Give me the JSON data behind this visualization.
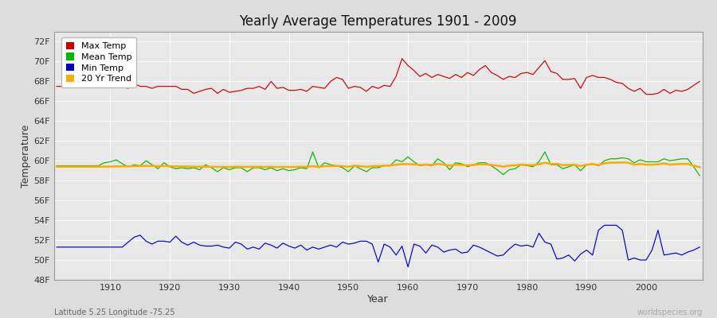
{
  "title": "Yearly Average Temperatures 1901 - 2009",
  "xlabel": "Year",
  "ylabel": "Temperature",
  "subtitle_lat": "Latitude 5.25 Longitude -75.25",
  "watermark": "worldspecies.org",
  "ylim": [
    48,
    73
  ],
  "yticks": [
    48,
    50,
    52,
    54,
    56,
    58,
    60,
    62,
    64,
    66,
    68,
    70,
    72
  ],
  "ytick_labels": [
    "48F",
    "50F",
    "52F",
    "54F",
    "56F",
    "58F",
    "60F",
    "62F",
    "64F",
    "66F",
    "68F",
    "70F",
    "72F"
  ],
  "year_start": 1901,
  "year_end": 2009,
  "colors": {
    "max_temp": "#cc0000",
    "mean_temp": "#00bb00",
    "min_temp": "#0000cc",
    "trend": "#ffaa00",
    "fig_bg": "#dddddd",
    "plot_bg": "#e8e8e8",
    "grid": "#ffffff"
  },
  "max_temp": [
    67.5,
    67.5,
    67.5,
    67.5,
    67.5,
    67.5,
    67.5,
    67.5,
    67.5,
    67.5,
    67.5,
    67.5,
    67.3,
    67.8,
    67.5,
    67.5,
    67.3,
    67.5,
    67.5,
    67.5,
    67.5,
    67.2,
    67.2,
    66.8,
    67.0,
    67.2,
    67.3,
    66.8,
    67.2,
    66.9,
    67.0,
    67.1,
    67.3,
    67.3,
    67.5,
    67.2,
    68.0,
    67.3,
    67.4,
    67.1,
    67.1,
    67.2,
    67.0,
    67.5,
    67.4,
    67.3,
    68.0,
    68.4,
    68.2,
    67.3,
    67.5,
    67.4,
    67.0,
    67.5,
    67.3,
    67.6,
    67.5,
    68.5,
    70.3,
    69.6,
    69.1,
    68.5,
    68.8,
    68.4,
    68.7,
    68.5,
    68.3,
    68.7,
    68.4,
    68.9,
    68.6,
    69.2,
    69.6,
    68.9,
    68.6,
    68.2,
    68.5,
    68.4,
    68.8,
    68.9,
    68.7,
    69.4,
    70.1,
    69.0,
    68.8,
    68.2,
    68.2,
    68.3,
    67.3,
    68.4,
    68.6,
    68.4,
    68.4,
    68.2,
    67.9,
    67.8,
    67.3,
    67.0,
    67.3,
    66.7,
    66.7,
    66.8,
    67.2,
    66.8,
    67.1,
    67.0,
    67.2,
    67.6,
    68.0
  ],
  "mean_temp": [
    59.5,
    59.5,
    59.5,
    59.5,
    59.5,
    59.5,
    59.5,
    59.5,
    59.8,
    59.9,
    60.1,
    59.7,
    59.4,
    59.6,
    59.5,
    60.0,
    59.6,
    59.2,
    59.8,
    59.4,
    59.2,
    59.3,
    59.2,
    59.3,
    59.1,
    59.6,
    59.3,
    58.9,
    59.3,
    59.1,
    59.3,
    59.3,
    58.9,
    59.3,
    59.3,
    59.1,
    59.3,
    59.0,
    59.2,
    59.0,
    59.1,
    59.3,
    59.2,
    60.9,
    59.3,
    59.8,
    59.6,
    59.5,
    59.3,
    58.9,
    59.5,
    59.2,
    58.9,
    59.3,
    59.3,
    59.5,
    59.5,
    60.1,
    59.9,
    60.4,
    59.9,
    59.5,
    59.6,
    59.5,
    60.2,
    59.8,
    59.1,
    59.8,
    59.7,
    59.4,
    59.6,
    59.8,
    59.8,
    59.5,
    59.1,
    58.6,
    59.1,
    59.2,
    59.6,
    59.5,
    59.4,
    59.9,
    60.9,
    59.6,
    59.6,
    59.2,
    59.4,
    59.6,
    59.0,
    59.6,
    59.7,
    59.5,
    60.0,
    60.2,
    60.2,
    60.3,
    60.2,
    59.8,
    60.1,
    59.9,
    59.9,
    59.9,
    60.2,
    60.0,
    60.1,
    60.2,
    60.2,
    59.4,
    58.5
  ],
  "min_temp": [
    51.3,
    51.3,
    51.3,
    51.3,
    51.3,
    51.3,
    51.3,
    51.3,
    51.3,
    51.3,
    51.3,
    51.3,
    51.8,
    52.3,
    52.5,
    51.9,
    51.6,
    51.9,
    51.9,
    51.8,
    52.4,
    51.8,
    51.5,
    51.8,
    51.5,
    51.4,
    51.4,
    51.5,
    51.3,
    51.2,
    51.8,
    51.6,
    51.1,
    51.3,
    51.1,
    51.7,
    51.5,
    51.2,
    51.7,
    51.4,
    51.2,
    51.5,
    51.0,
    51.3,
    51.1,
    51.3,
    51.5,
    51.3,
    51.8,
    51.6,
    51.7,
    51.9,
    51.9,
    51.6,
    49.8,
    51.6,
    51.3,
    50.5,
    51.4,
    49.3,
    51.6,
    51.4,
    50.7,
    51.5,
    51.3,
    50.8,
    51.0,
    51.1,
    50.7,
    50.8,
    51.5,
    51.3,
    51.0,
    50.7,
    50.4,
    50.5,
    51.1,
    51.6,
    51.4,
    51.5,
    51.3,
    52.7,
    51.8,
    51.6,
    50.1,
    50.2,
    50.5,
    49.9,
    50.6,
    51.0,
    50.5,
    53.0,
    53.5,
    53.5,
    53.5,
    53.0,
    50.0,
    50.2,
    50.0,
    50.0,
    51.0,
    53.0,
    50.5,
    50.6,
    50.7,
    50.5,
    50.8,
    51.0,
    51.3
  ],
  "trend": [
    59.4,
    59.4,
    59.4,
    59.4,
    59.4,
    59.4,
    59.4,
    59.4,
    59.41,
    59.42,
    59.43,
    59.44,
    59.45,
    59.46,
    59.47,
    59.48,
    59.47,
    59.46,
    59.47,
    59.45,
    59.44,
    59.43,
    59.42,
    59.41,
    59.4,
    59.41,
    59.4,
    59.38,
    59.39,
    59.38,
    59.4,
    59.4,
    59.38,
    59.4,
    59.4,
    59.38,
    59.4,
    59.37,
    59.39,
    59.37,
    59.38,
    59.4,
    59.39,
    59.46,
    59.38,
    59.46,
    59.47,
    59.48,
    59.46,
    59.4,
    59.51,
    59.46,
    59.4,
    59.46,
    59.46,
    59.51,
    59.51,
    59.61,
    59.66,
    59.66,
    59.64,
    59.58,
    59.61,
    59.58,
    59.68,
    59.61,
    59.51,
    59.61,
    59.58,
    59.54,
    59.58,
    59.64,
    59.64,
    59.58,
    59.51,
    59.41,
    59.51,
    59.54,
    59.61,
    59.58,
    59.56,
    59.66,
    59.81,
    59.68,
    59.68,
    59.56,
    59.58,
    59.61,
    59.46,
    59.61,
    59.66,
    59.58,
    59.74,
    59.81,
    59.81,
    59.84,
    59.81,
    59.61,
    59.68,
    59.61,
    59.61,
    59.64,
    59.74,
    59.61,
    59.66,
    59.68,
    59.68,
    59.51,
    59.35
  ]
}
